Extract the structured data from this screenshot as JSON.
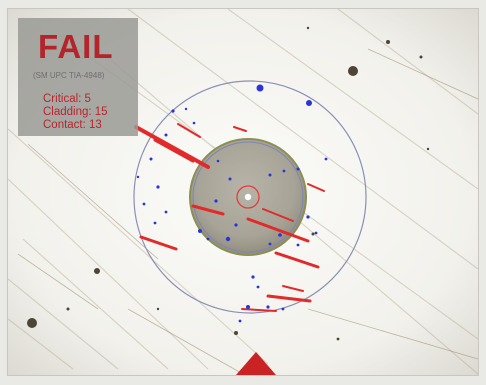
{
  "result": {
    "status": "FAIL",
    "subtitle": "(SM UPC TIA-4948)",
    "critical": "Critical: 5",
    "cladding": "Cladding: 15",
    "contact": "Contact: 13"
  },
  "colors": {
    "fail": "#b3252b",
    "defect_primary": "#e12a2a",
    "defect_secondary": "#2a35d9",
    "zone_ring": "#8a8fb6",
    "core_marker": "#e33b3b"
  },
  "icons": {
    "marker": "triangle-marker-icon"
  }
}
